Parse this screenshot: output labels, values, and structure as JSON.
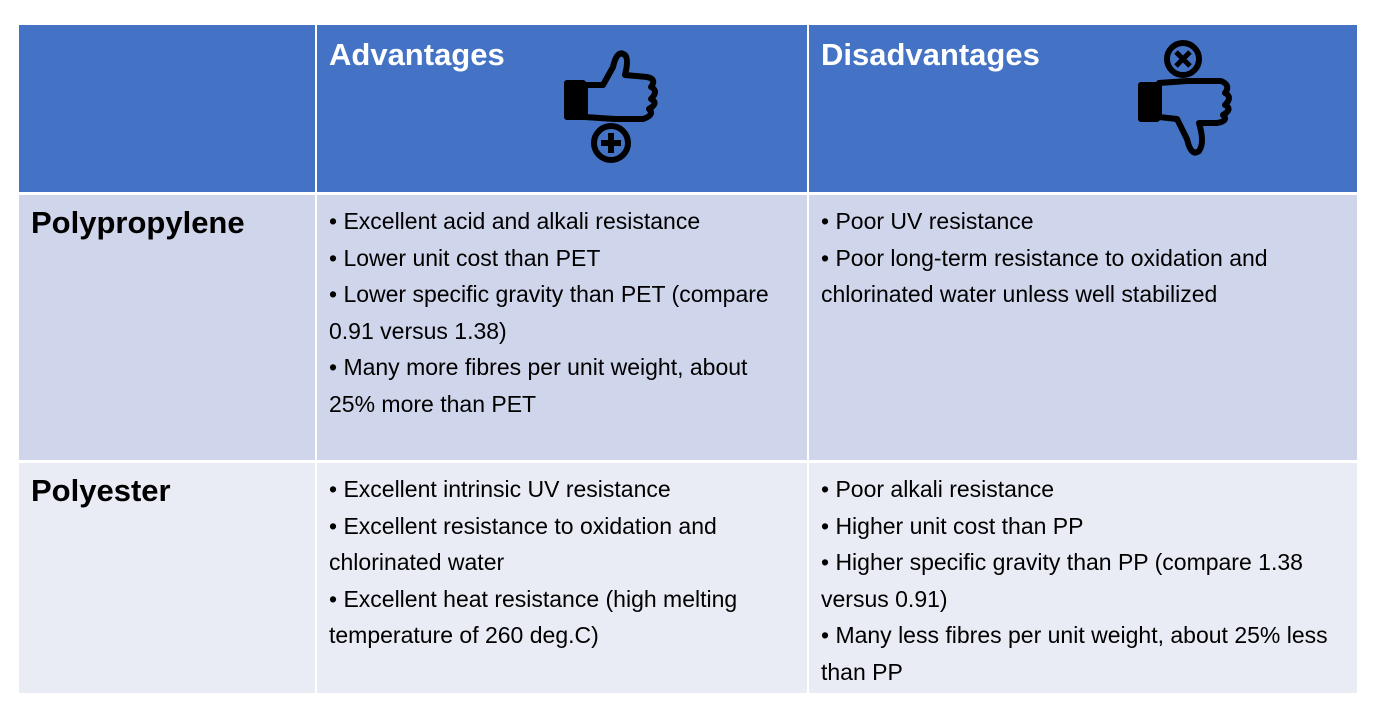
{
  "table": {
    "header": [
      "",
      "Advantages",
      "Disadvantages"
    ],
    "rows": [
      {
        "label": "Polypropylene",
        "advantages": [
          "• Excellent acid and alkali resistance",
          "• Lower unit cost than PET",
          "• Lower specific gravity than PET (compare 0.91 versus 1.38)",
          "• Many more fibres per unit weight, about 25% more than PET"
        ],
        "disadvantages": [
          "• Poor UV resistance",
          "• Poor long-term resistance to oxidation and chlorinated water unless well stabilized"
        ]
      },
      {
        "label": "Polyester",
        "advantages": [
          "• Excellent intrinsic UV resistance",
          "• Excellent resistance to oxidation and chlorinated water",
          "• Excellent heat resistance (high melting temperature of 260 deg.C)"
        ],
        "disadvantages": [
          "• Poor alkali resistance",
          "• Higher unit cost than PP",
          "• Higher specific gravity than PP (compare 1.38 versus 0.91)",
          "• Many less fibres per unit weight, about 25% less than PP"
        ]
      }
    ]
  }
}
